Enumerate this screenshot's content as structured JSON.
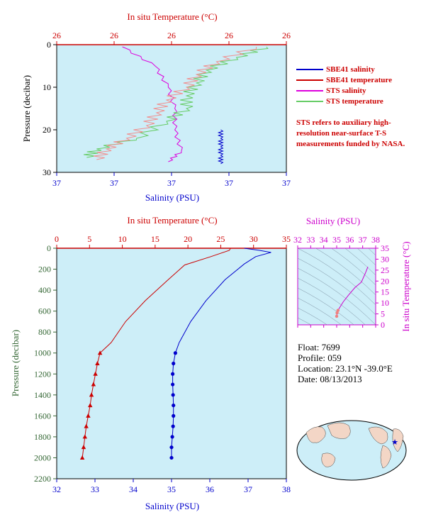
{
  "top_panel": {
    "temp_axis_label": "In situ Temperature (°C)",
    "sal_axis_label": "Salinity (PSU)",
    "pressure_label": "Pressure (decibar)",
    "temp_ticks": [
      "26",
      "26",
      "26",
      "26",
      "26",
      "26"
    ],
    "sal_ticks": [
      "37",
      "37",
      "37",
      "37",
      "37"
    ],
    "pressure_ticks": [
      "0",
      "10",
      "20",
      "30"
    ]
  },
  "legend": {
    "items": [
      {
        "label": "SBE41 salinity",
        "color": "#0000cc"
      },
      {
        "label": "SBE41 temperature",
        "color": "#cc0000"
      },
      {
        "label": "STS salinity",
        "color": "#dd00dd"
      },
      {
        "label": "STS temperature",
        "color": "#66cc66"
      }
    ],
    "note": "STS refers to auxiliary high-resolution near-surface T-S measurements funded by NASA."
  },
  "bottom_panel": {
    "temp_axis_label": "In situ Temperature (°C)",
    "sal_axis_label": "Salinity (PSU)",
    "pressure_label": "Pressure (decibar)",
    "temp_ticks": [
      "0",
      "5",
      "10",
      "15",
      "20",
      "25",
      "30",
      "35"
    ],
    "sal_ticks": [
      "32",
      "33",
      "34",
      "35",
      "36",
      "37",
      "38"
    ],
    "pressure_ticks": [
      "0",
      "200",
      "400",
      "600",
      "800",
      "1000",
      "1200",
      "1400",
      "1600",
      "1800",
      "2000",
      "2200"
    ]
  },
  "ts_panel": {
    "sal_axis_label": "Salinity (PSU)",
    "temp_axis_label": "In situ Temperature (°C)",
    "sal_ticks": [
      "32",
      "33",
      "34",
      "35",
      "36",
      "37",
      "38"
    ],
    "temp_ticks": [
      "0",
      "5",
      "10",
      "15",
      "20",
      "25",
      "30",
      "35"
    ]
  },
  "float_info": {
    "float": "Float:  7699",
    "profile": "Profile:  059",
    "location": "Location:  23.1°N  -39.0°E",
    "date": "Date:  08/13/2013"
  },
  "colors": {
    "plot_bg": "#cdeef8",
    "temperature": "#cc0000",
    "salinity": "#0000cc",
    "sts_salinity": "#dd00dd",
    "sts_temperature": "#66cc66",
    "sts_temp_pink": "#f09090",
    "pressure_axis": "#336633"
  },
  "chart_data": [
    {
      "type": "line",
      "title": "",
      "x_top_label": "In situ Temperature (°C)",
      "x_bottom_label": "Salinity (PSU)",
      "ylabel": "Pressure (decibar)",
      "ylim": [
        0,
        30
      ],
      "y_inverted": true,
      "series": [
        {
          "name": "SBE41 salinity",
          "points": [
            [
              37.1,
              20
            ],
            [
              37.1,
              22
            ],
            [
              37.1,
              24
            ],
            [
              37.1,
              26
            ],
            [
              37.1,
              28
            ]
          ]
        },
        {
          "name": "STS salinity",
          "points": [
            [
              36.95,
              0.5
            ],
            [
              37.0,
              5
            ],
            [
              37.02,
              10
            ],
            [
              37.03,
              15
            ],
            [
              37.03,
              20
            ],
            [
              37.04,
              25
            ],
            [
              37.02,
              27.5
            ]
          ]
        },
        {
          "name": "STS temperature",
          "points": [
            [
              27.6,
              0.5
            ],
            [
              27.3,
              3
            ],
            [
              27.0,
              6
            ],
            [
              26.9,
              9
            ],
            [
              26.8,
              12
            ],
            [
              26.8,
              15
            ],
            [
              26.6,
              18
            ],
            [
              26.3,
              22
            ],
            [
              25.9,
              24.5
            ],
            [
              25.8,
              26.5
            ]
          ]
        },
        {
          "name": "SBE41 temperature",
          "points": [
            [
              27.5,
              0.5
            ],
            [
              27.1,
              4
            ],
            [
              26.9,
              7
            ],
            [
              26.8,
              10
            ],
            [
              26.6,
              13
            ],
            [
              26.5,
              16
            ],
            [
              26.4,
              19
            ],
            [
              26.2,
              22
            ],
            [
              26.0,
              24.5
            ],
            [
              25.9,
              27
            ]
          ]
        }
      ]
    },
    {
      "type": "line",
      "title": "",
      "x_top_label": "In situ Temperature (°C)",
      "x_bottom_label": "Salinity (PSU)",
      "ylabel": "Pressure (decibar)",
      "temp_range": [
        0,
        35
      ],
      "sal_range": [
        32,
        38
      ],
      "ylim": [
        0,
        2200
      ],
      "y_inverted": true,
      "series": [
        {
          "name": "temperature_continuous",
          "points": [
            [
              26.5,
              0
            ],
            [
              26.3,
              20
            ],
            [
              23.5,
              80
            ],
            [
              19.5,
              160
            ],
            [
              17.0,
              300
            ],
            [
              13.5,
              500
            ],
            [
              10.5,
              700
            ],
            [
              8.3,
              900
            ],
            [
              6.6,
              1000
            ]
          ]
        },
        {
          "name": "temperature_bottles",
          "points": [
            [
              6.6,
              1000
            ],
            [
              6.2,
              1100
            ],
            [
              5.9,
              1200
            ],
            [
              5.6,
              1300
            ],
            [
              5.3,
              1400
            ],
            [
              5.1,
              1500
            ],
            [
              4.8,
              1600
            ],
            [
              4.5,
              1700
            ],
            [
              4.3,
              1800
            ],
            [
              4.1,
              1900
            ],
            [
              3.9,
              2000
            ]
          ]
        },
        {
          "name": "salinity_continuous",
          "points": [
            [
              36.9,
              0
            ],
            [
              37.3,
              20
            ],
            [
              37.6,
              40
            ],
            [
              37.2,
              80
            ],
            [
              36.9,
              150
            ],
            [
              36.4,
              300
            ],
            [
              35.9,
              500
            ],
            [
              35.5,
              700
            ],
            [
              35.2,
              900
            ],
            [
              35.1,
              1000
            ]
          ]
        },
        {
          "name": "salinity_bottles",
          "points": [
            [
              35.1,
              1000
            ],
            [
              35.05,
              1100
            ],
            [
              35.03,
              1200
            ],
            [
              35.03,
              1300
            ],
            [
              35.04,
              1400
            ],
            [
              35.05,
              1500
            ],
            [
              35.05,
              1600
            ],
            [
              35.04,
              1700
            ],
            [
              35.02,
              1800
            ],
            [
              35.0,
              1900
            ],
            [
              35.0,
              2000
            ]
          ]
        }
      ]
    },
    {
      "type": "scatter",
      "title": "",
      "xlabel": "Salinity (PSU)",
      "ylabel": "In situ Temperature (°C)",
      "xlim": [
        32,
        38
      ],
      "ylim": [
        0,
        35
      ],
      "series": [
        {
          "name": "ts_curve",
          "points": [
            [
              35.0,
              3.9
            ],
            [
              35.03,
              5.5
            ],
            [
              35.1,
              6.6
            ],
            [
              35.5,
              10.5
            ],
            [
              35.9,
              13.5
            ],
            [
              36.4,
              17.0
            ],
            [
              36.9,
              19.5
            ],
            [
              37.2,
              23.5
            ],
            [
              37.4,
              26.5
            ]
          ]
        }
      ]
    }
  ]
}
